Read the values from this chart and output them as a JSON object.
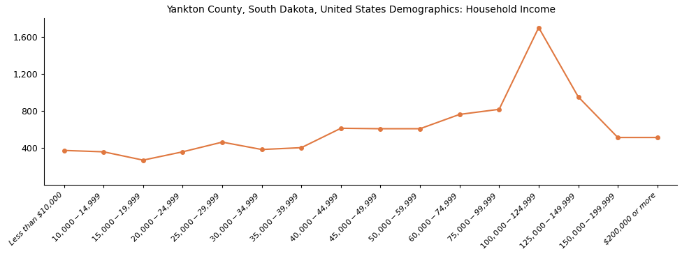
{
  "title": "Yankton County, South Dakota, United States Demographics: Household Income",
  "categories": [
    "Less than $10,000",
    "$10,000 - $14,999",
    "$15,000 - $19,999",
    "$20,000 - $24,999",
    "$25,000 - $29,999",
    "$30,000 - $34,999",
    "$35,000 - $39,999",
    "$40,000 - $44,999",
    "$45,000 - $49,999",
    "$50,000 - $59,999",
    "$60,000 - $74,999",
    "$75,000 - $99,999",
    "$100,000 - $124,999",
    "$125,000 - $149,999",
    "$150,000 - $199,999",
    "$200,000 or more"
  ],
  "values": [
    370,
    355,
    265,
    355,
    460,
    380,
    400,
    610,
    605,
    605,
    760,
    815,
    1700,
    950,
    510,
    510
  ],
  "line_color": "#E07840",
  "marker_color": "#E07840",
  "background_color": "#ffffff",
  "ylim": [
    0,
    1800
  ],
  "yticks": [
    400,
    800,
    1200,
    1600
  ],
  "title_fontsize": 10,
  "tick_fontsize": 8,
  "figsize": [
    9.76,
    3.67
  ],
  "dpi": 100
}
